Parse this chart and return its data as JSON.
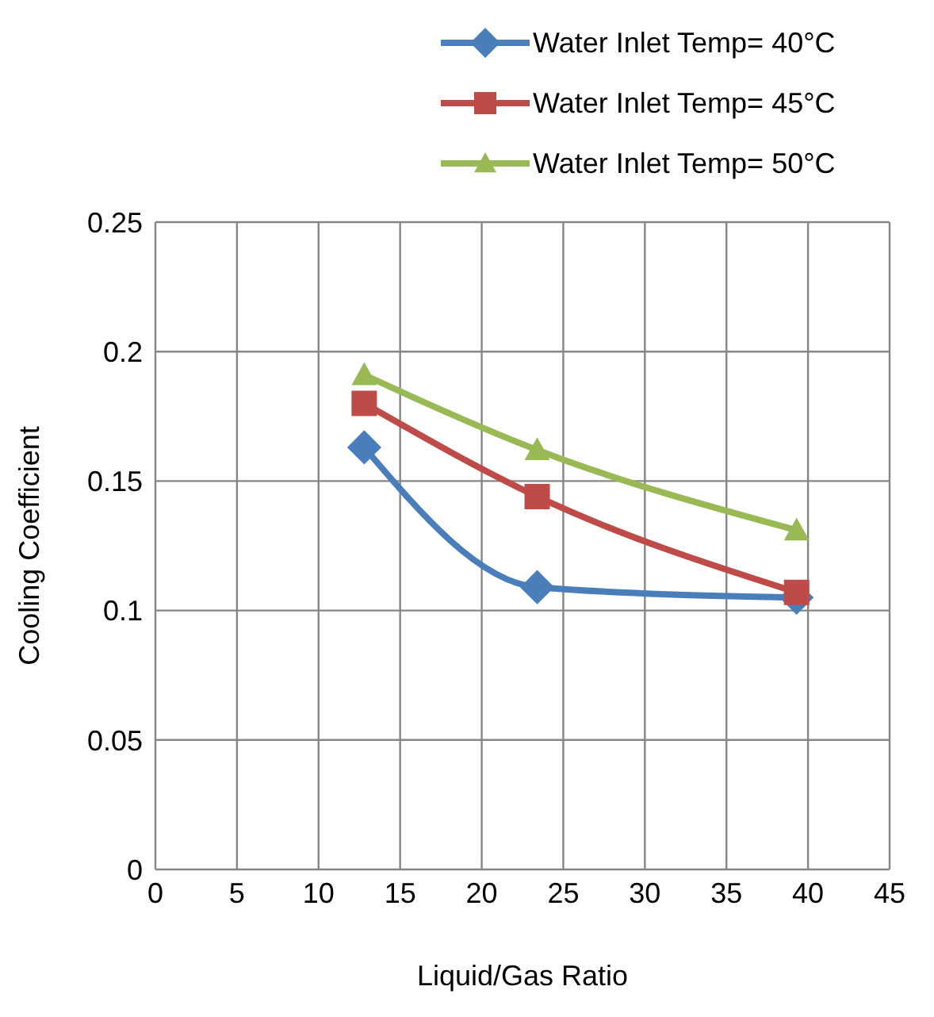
{
  "chart_data": {
    "type": "line",
    "xlabel": "Liquid/Gas Ratio",
    "ylabel": "Cooling Coefficient",
    "x": [
      12.8,
      23.4,
      39.3
    ],
    "series": [
      {
        "name": "Water Inlet Temp= 40°C",
        "color": "#4a7ebb",
        "marker": "diamond",
        "values": [
          0.163,
          0.109,
          0.105
        ]
      },
      {
        "name": "Water Inlet Temp= 45°C",
        "color": "#be4b48",
        "marker": "square",
        "values": [
          0.18,
          0.144,
          0.107
        ]
      },
      {
        "name": "Water Inlet Temp= 50°C",
        "color": "#98b954",
        "marker": "triangle",
        "values": [
          0.191,
          0.162,
          0.131
        ]
      }
    ],
    "xlim": [
      0,
      45
    ],
    "xticks": [
      0,
      5,
      10,
      15,
      20,
      25,
      30,
      35,
      40,
      45
    ],
    "ylim": [
      0,
      0.25
    ],
    "yticks": [
      0,
      0.05,
      0.1,
      0.15,
      0.2,
      0.25
    ],
    "grid": true,
    "legend": "top right"
  }
}
